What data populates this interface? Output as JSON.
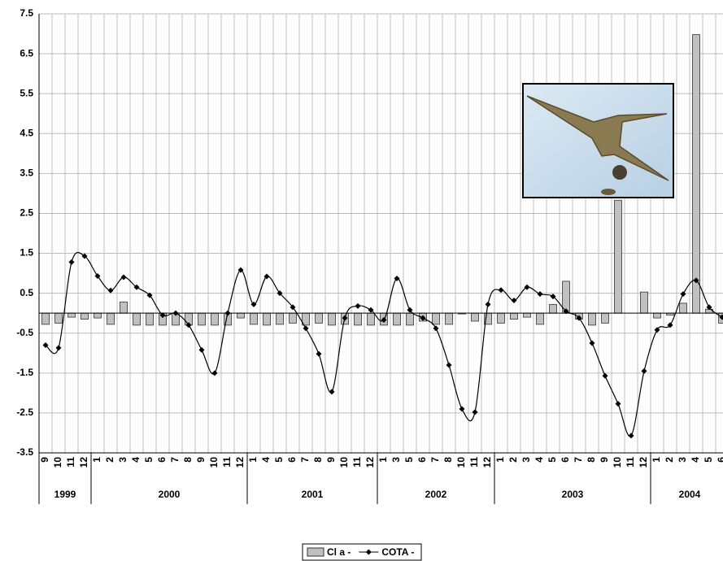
{
  "chart_data": {
    "type": "combo",
    "category_groups": [
      {
        "name": "1999",
        "categories": [
          "9",
          "10",
          "11",
          "12"
        ]
      },
      {
        "name": "2000",
        "categories": [
          "1",
          "2",
          "3",
          "4",
          "5",
          "6",
          "7",
          "8",
          "9",
          "10",
          "11",
          "12"
        ]
      },
      {
        "name": "2001",
        "categories": [
          "1",
          "4",
          "5",
          "6",
          "7",
          "8",
          "9",
          "10",
          "11",
          "12"
        ]
      },
      {
        "name": "2002",
        "categories": [
          "1",
          "3",
          "5",
          "6",
          "7",
          "8",
          "10",
          "11",
          "12"
        ]
      },
      {
        "name": "2003",
        "categories": [
          "1",
          "2",
          "3",
          "4",
          "5",
          "6",
          "7",
          "8",
          "9",
          "10",
          "11",
          "12"
        ]
      },
      {
        "name": "2004",
        "categories": [
          "1",
          "2",
          "3",
          "4",
          "5",
          "6"
        ]
      }
    ],
    "series": [
      {
        "name": "Cl a -",
        "type": "bar",
        "color": "#c0c0c0",
        "values": [
          -0.28,
          -0.25,
          -0.1,
          -0.15,
          -0.12,
          -0.28,
          0.28,
          -0.3,
          -0.3,
          -0.3,
          -0.3,
          -0.3,
          -0.3,
          -0.3,
          -0.3,
          -0.12,
          -0.28,
          -0.3,
          -0.28,
          -0.25,
          -0.3,
          -0.25,
          -0.3,
          -0.28,
          -0.3,
          -0.3,
          -0.3,
          -0.3,
          -0.3,
          -0.2,
          -0.28,
          -0.28,
          -0.02,
          -0.2,
          -0.28,
          -0.25,
          -0.15,
          -0.1,
          -0.28,
          0.22,
          0.8,
          -0.15,
          -0.3,
          -0.25,
          2.83,
          null,
          0.53,
          -0.12,
          -0.05,
          0.25,
          6.98,
          0.1,
          -0.25
        ]
      },
      {
        "name": "COTA -",
        "type": "line",
        "color": "#000000",
        "values": [
          -0.8,
          -0.87,
          1.28,
          1.43,
          0.93,
          0.57,
          0.9,
          0.65,
          0.45,
          -0.05,
          0.0,
          -0.3,
          -0.92,
          -1.5,
          0.0,
          1.08,
          0.22,
          0.92,
          0.5,
          0.15,
          -0.38,
          -1.02,
          -1.97,
          -0.12,
          0.18,
          0.08,
          -0.17,
          0.87,
          0.08,
          -0.12,
          -0.38,
          -1.3,
          -2.4,
          -2.48,
          0.22,
          0.58,
          0.32,
          0.65,
          0.48,
          0.42,
          0.05,
          -0.12,
          -0.75,
          -1.57,
          -2.27,
          -3.07,
          -1.45,
          -0.42,
          -0.3,
          0.48,
          0.82,
          0.15,
          -0.1
        ]
      }
    ],
    "ylim": [
      -3.5,
      7.5
    ],
    "yticks": [
      -3.5,
      -2.5,
      -1.5,
      -0.5,
      0.5,
      1.5,
      2.5,
      3.5,
      4.5,
      5.5,
      6.5,
      7.5
    ],
    "grid": true
  }
}
